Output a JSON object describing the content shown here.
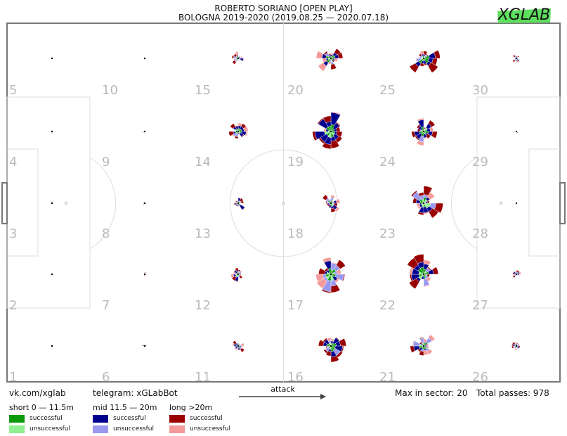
{
  "header": {
    "title": "ROBERTO SORIANO [OPEN PLAY]",
    "subtitle": "BOLOGNA 2019-2020 (2019.08.25 — 2020.07.18)",
    "brand_logo": "XGLAB"
  },
  "footer": {
    "vk": "vk.com/xglab",
    "telegram": "telegram: xGLabBot",
    "attack": "attack",
    "max_in_sector": "Max in sector: 20",
    "total_passes": "Total passes: 978"
  },
  "legend": {
    "short": {
      "title": "short 0 — 11.5m",
      "successful": "successful",
      "unsuccessful": "unsuccessful"
    },
    "mid": {
      "title": "mid 11.5 — 20m",
      "successful": "successful",
      "unsuccessful": "unsuccessful"
    },
    "long": {
      "title": "long >20m",
      "successful": "successful",
      "unsuccessful": "unsuccessful"
    }
  },
  "colors": {
    "short_success": "#0a9a0a",
    "short_fail": "#8ff08f",
    "mid_success": "#00008f",
    "mid_fail": "#9999f0",
    "long_success": "#990000",
    "long_fail": "#f49a9a",
    "zone_label": "#bbbbbb",
    "pitch_line": "#dddddd"
  },
  "chart_data": {
    "type": "radial-pass-map",
    "title": "ROBERTO SORIANO [OPEN PLAY]",
    "subtitle": "BOLOGNA 2019-2020 (2019.08.25 — 2020.07.18)",
    "max_in_sector": 20,
    "total_passes": 978,
    "zones": [
      {
        "id": "1",
        "level": 0.05
      },
      {
        "id": "2",
        "level": 0.0
      },
      {
        "id": "3",
        "level": 0.0
      },
      {
        "id": "4",
        "level": 0.04
      },
      {
        "id": "5",
        "level": 0.05
      },
      {
        "id": "6",
        "level": 0.12
      },
      {
        "id": "7",
        "level": 0.1
      },
      {
        "id": "8",
        "level": 0.08
      },
      {
        "id": "9",
        "level": 0.1
      },
      {
        "id": "10",
        "level": 0.1
      },
      {
        "id": "11",
        "level": 0.35
      },
      {
        "id": "12",
        "level": 0.38
      },
      {
        "id": "13",
        "level": 0.35
      },
      {
        "id": "14",
        "level": 0.42
      },
      {
        "id": "15",
        "level": 0.3
      },
      {
        "id": "16",
        "level": 0.7
      },
      {
        "id": "17",
        "level": 0.85
      },
      {
        "id": "18",
        "level": 0.45
      },
      {
        "id": "19",
        "level": 0.9
      },
      {
        "id": "20",
        "level": 0.65
      },
      {
        "id": "21",
        "level": 0.58
      },
      {
        "id": "22",
        "level": 0.88
      },
      {
        "id": "23",
        "level": 0.85
      },
      {
        "id": "24",
        "level": 0.65
      },
      {
        "id": "25",
        "level": 0.72
      },
      {
        "id": "26",
        "level": 0.22
      },
      {
        "id": "27",
        "level": 0.22
      },
      {
        "id": "28",
        "level": 0.03
      },
      {
        "id": "29",
        "level": 0.1
      },
      {
        "id": "30",
        "level": 0.2
      }
    ]
  }
}
